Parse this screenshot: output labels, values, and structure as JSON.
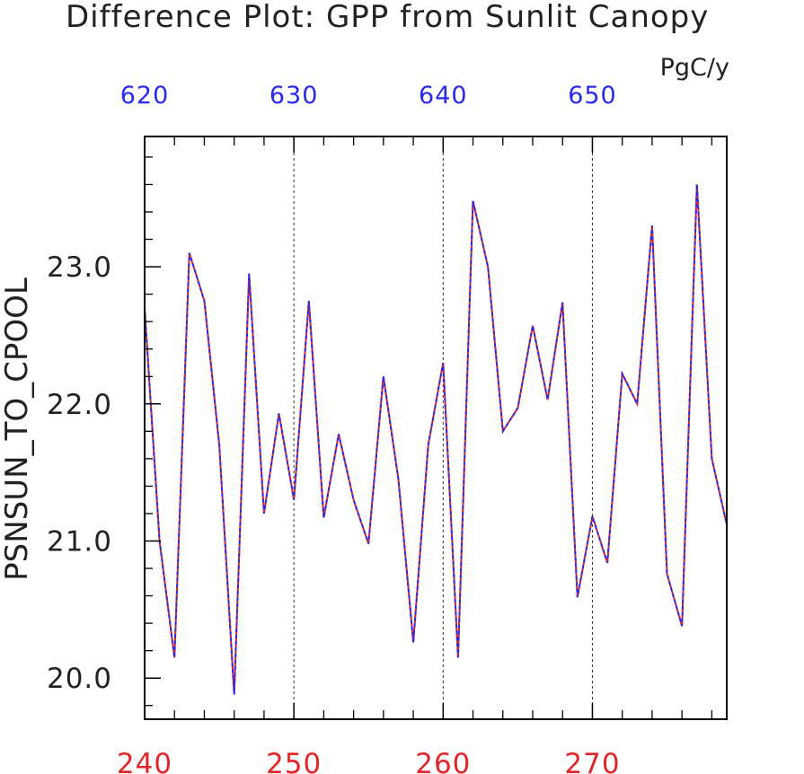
{
  "chart_data": {
    "type": "line",
    "title": "Difference Plot: GPP from Sunlit Canopy",
    "units": "PgC/y",
    "ylabel": "PSNSUN_TO_CPOOL",
    "ylim": [
      19.7,
      23.95
    ],
    "y_ticks": [
      "20.0",
      "21.0",
      "22.0",
      "23.0"
    ],
    "y_tick_values": [
      20,
      21,
      22,
      23
    ],
    "bottom_axis": {
      "color": "#e0262a",
      "xlim": [
        240,
        279
      ],
      "ticks": [
        "240",
        "250",
        "260",
        "270"
      ],
      "tick_values": [
        240,
        250,
        260,
        270
      ]
    },
    "top_axis": {
      "color": "#2a2aee",
      "xlim": [
        620,
        659
      ],
      "ticks": [
        "620",
        "630",
        "640",
        "650"
      ],
      "tick_values": [
        620,
        630,
        640,
        650
      ]
    },
    "grid": "vertical dashed at major ticks",
    "series": [
      {
        "color": "#e0262a",
        "style": "solid",
        "x": [
          240,
          241,
          242,
          243,
          244,
          245,
          246,
          247,
          248,
          249,
          250,
          251,
          252,
          253,
          254,
          255,
          256,
          257,
          258,
          259,
          260,
          261,
          262,
          263,
          264,
          265,
          266,
          267,
          268,
          269,
          270,
          271,
          272,
          273,
          274,
          275,
          276,
          277,
          278,
          279
        ],
        "y": [
          22.7,
          21.0,
          20.15,
          23.1,
          22.75,
          21.7,
          19.88,
          22.95,
          21.2,
          21.93,
          21.3,
          22.75,
          21.17,
          21.78,
          21.3,
          20.98,
          22.2,
          21.45,
          20.26,
          21.7,
          22.3,
          20.15,
          23.48,
          23.0,
          21.8,
          21.97,
          22.57,
          22.03,
          22.74,
          20.59,
          21.18,
          20.84,
          22.22,
          22.0,
          23.3,
          20.76,
          20.38,
          23.6,
          21.6,
          21.12
        ]
      },
      {
        "color": "#2a2aee",
        "style": "dashed",
        "x": [
          620,
          621,
          622,
          623,
          624,
          625,
          626,
          627,
          628,
          629,
          630,
          631,
          632,
          633,
          634,
          635,
          636,
          637,
          638,
          639,
          640,
          641,
          642,
          643,
          644,
          645,
          646,
          647,
          648,
          649,
          650,
          651,
          652,
          653,
          654,
          655,
          656,
          657,
          658,
          659
        ],
        "y": [
          22.7,
          21.0,
          20.15,
          23.1,
          22.75,
          21.7,
          19.88,
          22.95,
          21.2,
          21.93,
          21.3,
          22.75,
          21.17,
          21.78,
          21.3,
          20.98,
          22.2,
          21.45,
          20.26,
          21.7,
          22.3,
          20.15,
          23.48,
          23.0,
          21.8,
          21.97,
          22.57,
          22.03,
          22.74,
          20.59,
          21.18,
          20.84,
          22.22,
          22.0,
          23.3,
          20.76,
          20.38,
          23.6,
          21.6,
          21.12
        ]
      }
    ]
  }
}
